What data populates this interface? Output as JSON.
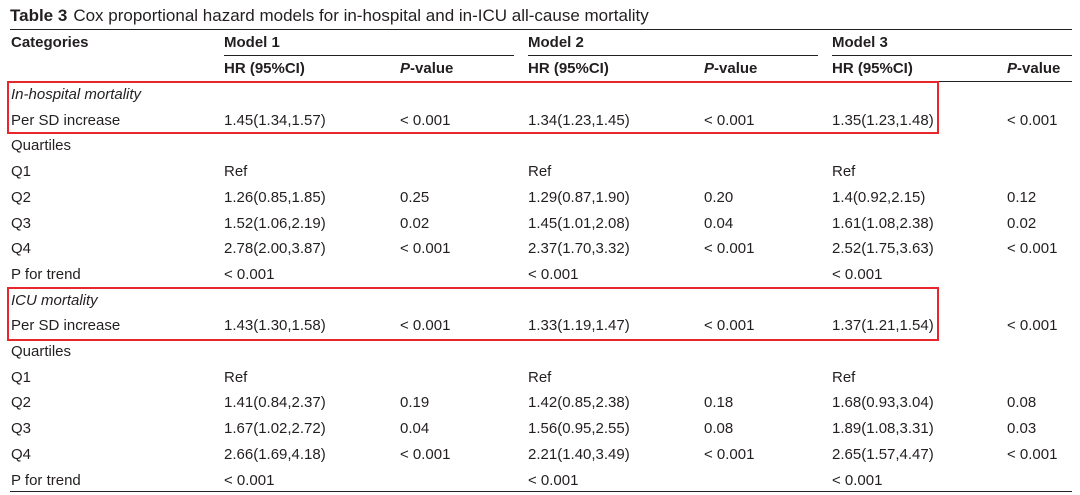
{
  "caption": {
    "label": "Table 3",
    "title": "Cox proportional hazard models for in-hospital and in-ICU all-cause mortality"
  },
  "header": {
    "categories": "Categories",
    "models": [
      "Model 1",
      "Model 2",
      "Model 3"
    ],
    "hr": "HR (95%CI)",
    "p_prefix": "P",
    "p_suffix": "-value"
  },
  "rows": [
    {
      "label": "In-hospital mortality",
      "italic": true,
      "cells": [
        "",
        "",
        "",
        "",
        "",
        ""
      ]
    },
    {
      "label": "Per SD increase",
      "cells": [
        "1.45(1.34,1.57)",
        "< 0.001",
        "1.34(1.23,1.45)",
        "< 0.001",
        "1.35(1.23,1.48)",
        "< 0.001"
      ]
    },
    {
      "label": "Quartiles",
      "cells": [
        "",
        "",
        "",
        "",
        "",
        ""
      ]
    },
    {
      "label": "Q1",
      "cells": [
        "Ref",
        "",
        "Ref",
        "",
        "Ref",
        ""
      ]
    },
    {
      "label": "Q2",
      "cells": [
        "1.26(0.85,1.85)",
        "0.25",
        "1.29(0.87,1.90)",
        "0.20",
        "1.4(0.92,2.15)",
        "0.12"
      ]
    },
    {
      "label": "Q3",
      "cells": [
        "1.52(1.06,2.19)",
        "0.02",
        "1.45(1.01,2.08)",
        "0.04",
        "1.61(1.08,2.38)",
        "0.02"
      ]
    },
    {
      "label": "Q4",
      "cells": [
        "2.78(2.00,3.87)",
        "< 0.001",
        "2.37(1.70,3.32)",
        "< 0.001",
        "2.52(1.75,3.63)",
        "< 0.001"
      ]
    },
    {
      "label": "P for trend",
      "cells": [
        "< 0.001",
        "",
        "< 0.001",
        "",
        "< 0.001",
        ""
      ]
    },
    {
      "label": "ICU mortality",
      "italic": true,
      "cells": [
        "",
        "",
        "",
        "",
        "",
        ""
      ]
    },
    {
      "label": "Per SD increase",
      "cells": [
        "1.43(1.30,1.58)",
        "< 0.001",
        "1.33(1.19,1.47)",
        "< 0.001",
        "1.37(1.21,1.54)",
        "< 0.001"
      ]
    },
    {
      "label": "Quartiles",
      "cells": [
        "",
        "",
        "",
        "",
        "",
        ""
      ]
    },
    {
      "label": "Q1",
      "cells": [
        "Ref",
        "",
        "Ref",
        "",
        "Ref",
        ""
      ]
    },
    {
      "label": "Q2",
      "cells": [
        "1.41(0.84,2.37)",
        "0.19",
        "1.42(0.85,2.38)",
        "0.18",
        "1.68(0.93,3.04)",
        "0.08"
      ]
    },
    {
      "label": "Q3",
      "cells": [
        "1.67(1.02,2.72)",
        "0.04",
        "1.56(0.95,2.55)",
        "0.08",
        "1.89(1.08,3.31)",
        "0.03"
      ]
    },
    {
      "label": "Q4",
      "cells": [
        "2.66(1.69,4.18)",
        "< 0.001",
        "2.21(1.40,3.49)",
        "< 0.001",
        "2.65(1.57,4.47)",
        "< 0.001"
      ]
    },
    {
      "label": "P for trend",
      "cells": [
        "< 0.001",
        "",
        "< 0.001",
        "",
        "< 0.001",
        ""
      ]
    }
  ],
  "highlight_color": "#e8262b"
}
